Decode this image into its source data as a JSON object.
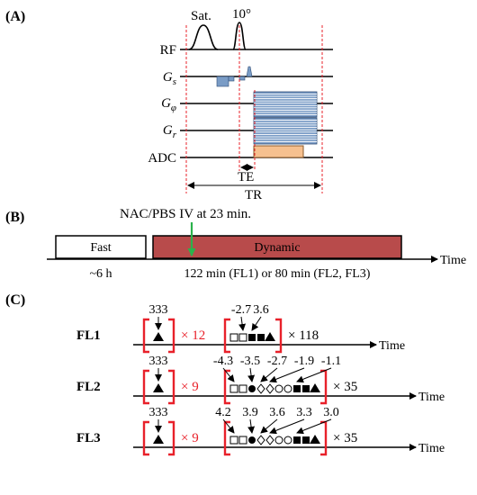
{
  "panelA": {
    "label": "(A)",
    "sat_label": "Sat.",
    "flip_label": "10°",
    "rows": [
      "RF",
      "G",
      "G",
      "G",
      "ADC"
    ],
    "row_subs": [
      "",
      "s",
      "φ",
      "r",
      ""
    ],
    "te_label": "TE",
    "tr_label": "TR",
    "colors": {
      "gradient": "#7a9cc6",
      "adc": "#f6c08f",
      "dashed": "#e8212a"
    }
  },
  "panelB": {
    "label": "(B)",
    "injection_label": "NAC/PBS IV at 23 min.",
    "fast_label": "Fast",
    "dynamic_label": "Dynamic",
    "fast_duration": "~6 h",
    "dynamic_duration": "122 min (FL1) or 80 min (FL2, FL3)",
    "axis_label": "Time",
    "colors": {
      "dynamic": "#b84b4b",
      "arrow": "#2bb24c"
    }
  },
  "panelC": {
    "label": "(C)",
    "rows": [
      {
        "name": "FL1",
        "first_value": "333",
        "first_repeat": "× 12",
        "offsets": [
          "-2.7",
          "3.6"
        ],
        "second_repeat": "× 118",
        "axis_label": "Time"
      },
      {
        "name": "FL2",
        "first_value": "333",
        "first_repeat": "× 9",
        "offsets": [
          "-4.3",
          "-3.5",
          "-2.7",
          "-1.9",
          "-1.1"
        ],
        "second_repeat": "× 35",
        "axis_label": "Time"
      },
      {
        "name": "FL3",
        "first_value": "333",
        "first_repeat": "× 9",
        "offsets": [
          "4.2",
          "3.9",
          "3.6",
          "3.3",
          "3.0"
        ],
        "second_repeat": "× 35",
        "axis_label": "Time"
      }
    ],
    "colors": {
      "bracket": "#e8212a"
    }
  }
}
